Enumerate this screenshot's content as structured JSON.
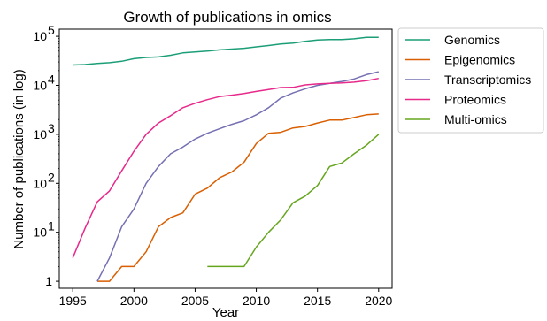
{
  "chart_data": {
    "type": "line",
    "title": "Growth of publications in omics",
    "xlabel": "Year",
    "ylabel": "Number of publications (in log)",
    "yscale": "log",
    "xlim": [
      1993.9,
      2021.1
    ],
    "ylim": [
      0.72,
      140000
    ],
    "xticks": [
      1995,
      2000,
      2005,
      2010,
      2015,
      2020
    ],
    "yticks": [
      {
        "value": 1,
        "label": "1",
        "exp": ""
      },
      {
        "value": 10,
        "label": "10",
        "exp": "1"
      },
      {
        "value": 100,
        "label": "10",
        "exp": "2"
      },
      {
        "value": 1000,
        "label": "10",
        "exp": "3"
      },
      {
        "value": 10000,
        "label": "10",
        "exp": "4"
      },
      {
        "value": 100000,
        "label": "10",
        "exp": "5"
      }
    ],
    "grid": false,
    "legend_position": "outside-right",
    "series": [
      {
        "name": "Genomics",
        "color": "#1b9e77",
        "x": [
          1995,
          1996,
          1997,
          1998,
          1999,
          2000,
          2001,
          2002,
          2003,
          2004,
          2005,
          2006,
          2007,
          2008,
          2009,
          2010,
          2011,
          2012,
          2013,
          2014,
          2015,
          2016,
          2017,
          2018,
          2019,
          2020
        ],
        "y": [
          26000,
          26500,
          28000,
          29000,
          31000,
          35000,
          37000,
          38000,
          41000,
          46000,
          48000,
          50000,
          53000,
          55000,
          57000,
          61000,
          65000,
          70000,
          73000,
          79000,
          84000,
          86000,
          86000,
          89000,
          95000,
          95000
        ]
      },
      {
        "name": "Epigenomics",
        "color": "#d95f02",
        "x": [
          1997,
          1998,
          1999,
          2000,
          2001,
          2002,
          2003,
          2004,
          2005,
          2006,
          2007,
          2008,
          2009,
          2010,
          2011,
          2012,
          2013,
          2014,
          2015,
          2016,
          2017,
          2018,
          2019,
          2020
        ],
        "y": [
          1,
          1,
          2,
          2,
          4,
          13,
          20,
          25,
          60,
          80,
          130,
          170,
          270,
          650,
          1050,
          1100,
          1350,
          1450,
          1700,
          1950,
          1950,
          2200,
          2500,
          2600
        ]
      },
      {
        "name": "Transcriptomics",
        "color": "#7570b3",
        "x": [
          1997,
          1998,
          1999,
          2000,
          2001,
          2002,
          2003,
          2004,
          2005,
          2006,
          2007,
          2008,
          2009,
          2010,
          2011,
          2012,
          2013,
          2014,
          2015,
          2016,
          2017,
          2018,
          2019,
          2020
        ],
        "y": [
          1,
          3,
          13,
          30,
          100,
          220,
          400,
          550,
          800,
          1050,
          1300,
          1600,
          1900,
          2500,
          3500,
          5500,
          7000,
          8500,
          10000,
          11000,
          12000,
          13500,
          16500,
          19000
        ]
      },
      {
        "name": "Proteomics",
        "color": "#e7298a",
        "x": [
          1995,
          1996,
          1997,
          1998,
          1999,
          2000,
          2001,
          2002,
          2003,
          2004,
          2005,
          2006,
          2007,
          2008,
          2009,
          2010,
          2011,
          2012,
          2013,
          2014,
          2015,
          2016,
          2017,
          2018,
          2019,
          2020
        ],
        "y": [
          3,
          12,
          42,
          70,
          180,
          450,
          1000,
          1700,
          2400,
          3500,
          4300,
          5100,
          5900,
          6300,
          6800,
          7500,
          8200,
          9000,
          9100,
          10200,
          10700,
          11000,
          11200,
          11600,
          12400,
          13800
        ]
      },
      {
        "name": "Multi-omics",
        "color": "#66a61e",
        "x": [
          2006,
          2007,
          2008,
          2009,
          2010,
          2011,
          2012,
          2013,
          2014,
          2015,
          2016,
          2017,
          2018,
          2019,
          2020
        ],
        "y": [
          2,
          2,
          2,
          2,
          5,
          10,
          18,
          40,
          55,
          90,
          220,
          260,
          400,
          600,
          1000
        ]
      }
    ]
  }
}
